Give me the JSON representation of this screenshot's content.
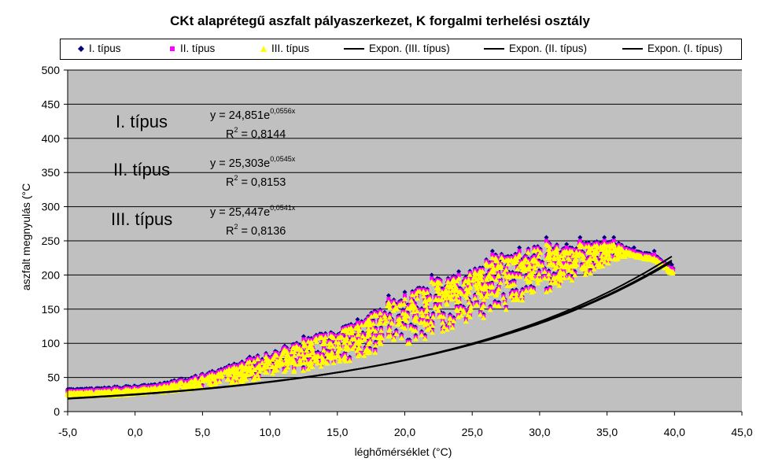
{
  "chart_data": {
    "type": "scatter",
    "title": "CKt alaprétegű aszfalt pályaszerkezet, K forgalmi terhelési osztály",
    "xlabel": "léghőmérséklet (°C)",
    "ylabel": "aszfalt megnyulás (°C",
    "xlim": [
      -5,
      45
    ],
    "ylim": [
      0,
      500
    ],
    "x_ticks": [
      "-5,0",
      "0,0",
      "5,0",
      "10,0",
      "15,0",
      "20,0",
      "25,0",
      "30,0",
      "35,0",
      "40,0",
      "45,0"
    ],
    "y_ticks": [
      "0",
      "50",
      "100",
      "150",
      "200",
      "250",
      "300",
      "350",
      "400",
      "450",
      "500"
    ],
    "grid": "horizontal",
    "plot_background": "#c0c0c0",
    "legend_position": "top",
    "legend": [
      "I. típus",
      "II. típus",
      "III. típus",
      "Expon. (III. típus)",
      "Expon. (II. típus)",
      "Expon. (I. típus)"
    ],
    "series": [
      {
        "name": "I. típus",
        "marker": "diamond",
        "color": "#000080",
        "peaks": [
          [
            -4.5,
            30
          ],
          [
            1.5,
            38
          ],
          [
            5,
            55
          ],
          [
            8.5,
            80
          ],
          [
            12.5,
            110
          ],
          [
            16.5,
            135
          ],
          [
            18.8,
            170
          ],
          [
            20,
            175
          ],
          [
            22,
            200
          ],
          [
            24,
            205
          ],
          [
            26.5,
            235
          ],
          [
            28.5,
            240
          ],
          [
            30.5,
            255
          ],
          [
            32,
            245
          ],
          [
            33,
            255
          ],
          [
            34.8,
            255
          ],
          [
            35.5,
            255
          ],
          [
            37,
            240
          ],
          [
            38.5,
            235
          ],
          [
            39.8,
            215
          ]
        ]
      },
      {
        "name": "II. típus",
        "marker": "square",
        "color": "#ff00ff",
        "peaks": [
          [
            -4.5,
            29
          ],
          [
            1.5,
            37
          ],
          [
            5,
            53
          ],
          [
            8.5,
            77
          ],
          [
            12.5,
            106
          ],
          [
            16.5,
            130
          ],
          [
            18.8,
            165
          ],
          [
            20,
            170
          ],
          [
            22,
            195
          ],
          [
            24,
            200
          ],
          [
            26.5,
            230
          ],
          [
            28.5,
            235
          ],
          [
            30.5,
            250
          ],
          [
            32,
            240
          ],
          [
            33,
            250
          ],
          [
            34.8,
            250
          ],
          [
            35.5,
            250
          ],
          [
            37,
            235
          ],
          [
            38.5,
            230
          ],
          [
            39.8,
            210
          ]
        ]
      },
      {
        "name": "III. típus",
        "marker": "triangle",
        "color": "#ffff00",
        "peaks": [
          [
            -4.5,
            28
          ],
          [
            1.5,
            35
          ],
          [
            5,
            50
          ],
          [
            8.5,
            73
          ],
          [
            12.5,
            102
          ],
          [
            16.5,
            126
          ],
          [
            18.8,
            160
          ],
          [
            20,
            165
          ],
          [
            22,
            190
          ],
          [
            24,
            195
          ],
          [
            26.5,
            225
          ],
          [
            28.5,
            230
          ],
          [
            30.5,
            245
          ],
          [
            32,
            235
          ],
          [
            33,
            245
          ],
          [
            34.8,
            245
          ],
          [
            35.5,
            245
          ],
          [
            37,
            230
          ],
          [
            38.5,
            225
          ],
          [
            39.8,
            205
          ]
        ]
      },
      {
        "name": "Expon. (III. típus)",
        "type": "trendline",
        "a": 25.447,
        "b": 0.0541,
        "color": "#000000"
      },
      {
        "name": "Expon. (II. típus)",
        "type": "trendline",
        "a": 25.303,
        "b": 0.0545,
        "color": "#000000"
      },
      {
        "name": "Expon. (I. típus)",
        "type": "trendline",
        "a": 24.851,
        "b": 0.0556,
        "color": "#000000"
      }
    ],
    "annotations": {
      "type1": {
        "label": "I. típus",
        "eq": "y = 24,851e",
        "exp": "0,0556x",
        "r2_pre": "R",
        "r2_sup": "2",
        "r2_val": " = 0,8144"
      },
      "type2": {
        "label": "II. típus",
        "eq": "y = 25,303e",
        "exp": "0,0545x",
        "r2_pre": "R",
        "r2_sup": "2",
        "r2_val": " = 0,8153"
      },
      "type3": {
        "label": "III. típus",
        "eq": "y = 25,447e",
        "exp": "0,0541x",
        "r2_pre": "R",
        "r2_sup": "2",
        "r2_val": " = 0,8136"
      }
    }
  }
}
